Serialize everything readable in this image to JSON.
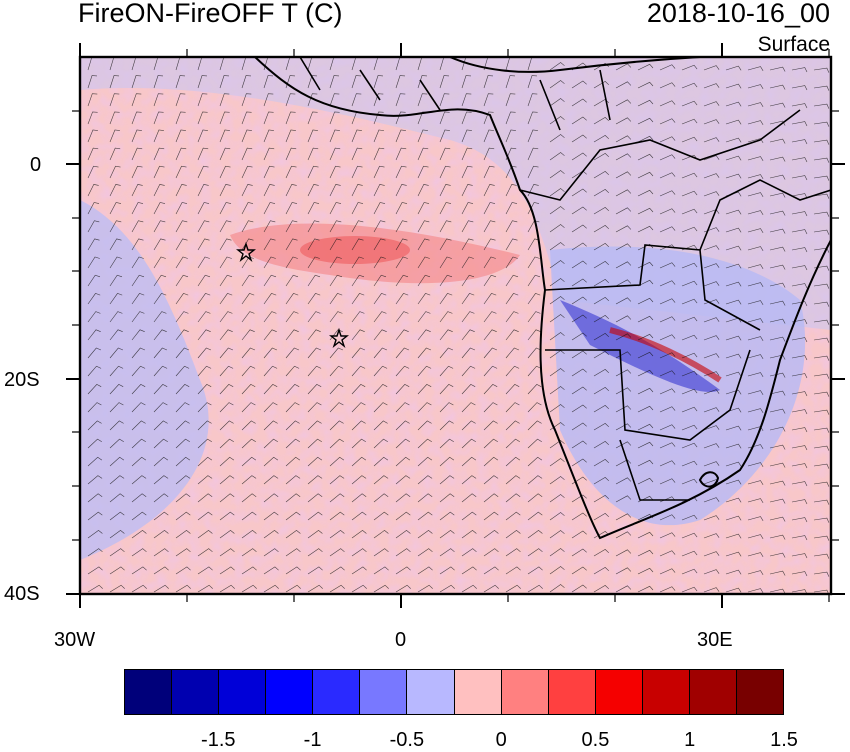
{
  "header": {
    "title": "FireON-FireOFF T (C)",
    "datetime": "2018-10-16_00",
    "level": "Surface"
  },
  "map": {
    "lat_range": [
      -40,
      10
    ],
    "lon_range": [
      -30,
      40
    ],
    "lat_tick_labels": [
      "0",
      "20S",
      "40S"
    ],
    "lon_tick_labels": [
      "30W",
      "0",
      "30E"
    ],
    "fields": [
      "temperature difference (filled contours)",
      "wind barbs",
      "country borders"
    ],
    "markers": [
      {
        "symbol": "star",
        "lat": -8,
        "lon": -14.5
      },
      {
        "symbol": "star",
        "lat": -16,
        "lon": -5.7
      }
    ]
  },
  "colorbar": {
    "colors": [
      "#00007a",
      "#0000b0",
      "#0000d8",
      "#0000ff",
      "#2a2aff",
      "#7878ff",
      "#b8b8ff",
      "#ffc0c0",
      "#ff8080",
      "#ff4040",
      "#f50000",
      "#c80000",
      "#a00000",
      "#780000"
    ],
    "labels": [
      "-1.5",
      "-1",
      "-0.5",
      "0",
      "0.5",
      "1",
      "1.5"
    ]
  }
}
